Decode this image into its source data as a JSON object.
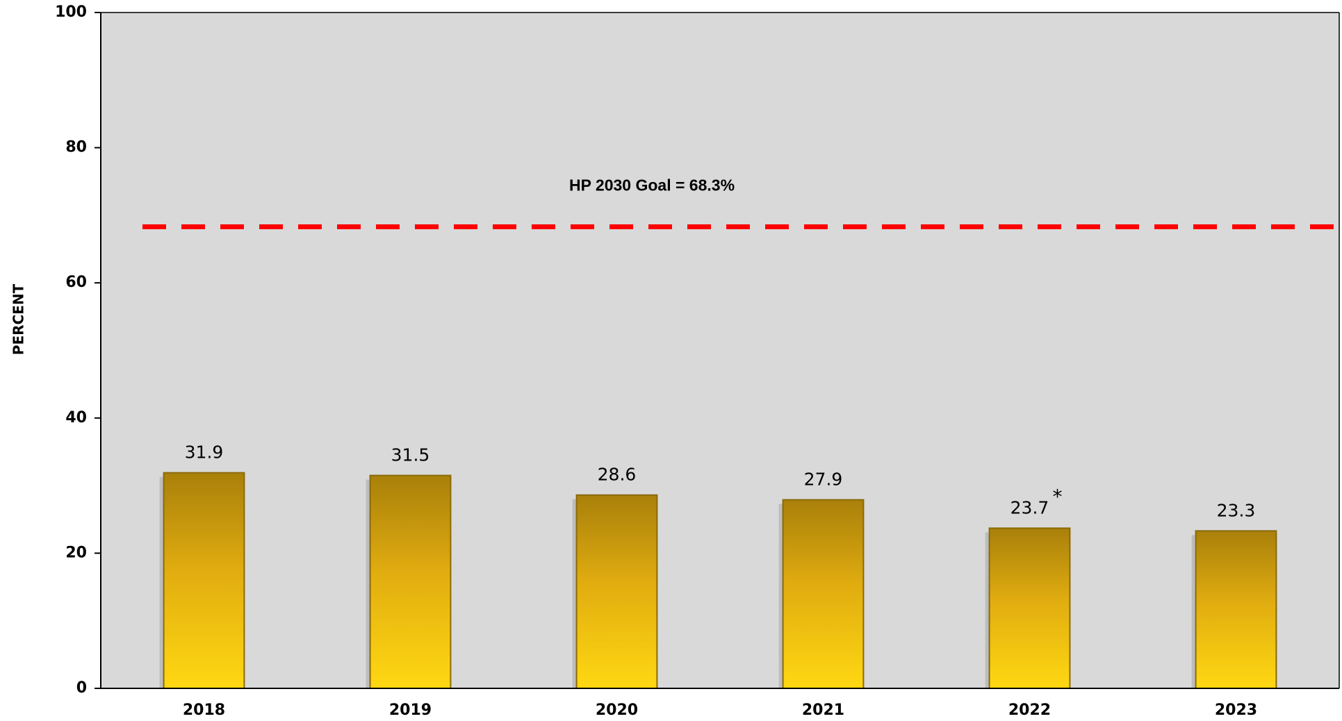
{
  "chart_data": {
    "type": "bar",
    "y_label": "PERCENT",
    "categories": [
      "2018",
      "2019",
      "2020",
      "2021",
      "2022",
      "2023"
    ],
    "values": [
      31.9,
      31.5,
      28.6,
      27.9,
      23.7,
      23.3
    ],
    "annotations": [
      {
        "category": "2022",
        "text": "*"
      }
    ],
    "goal": {
      "value": 68.3,
      "label": "HP 2030 Goal = 68.3%",
      "color": "#ff0000"
    },
    "color": "#d4a80a",
    "ylim": [
      0,
      100
    ],
    "yticks": [
      0,
      20,
      40,
      60,
      80,
      100
    ]
  }
}
